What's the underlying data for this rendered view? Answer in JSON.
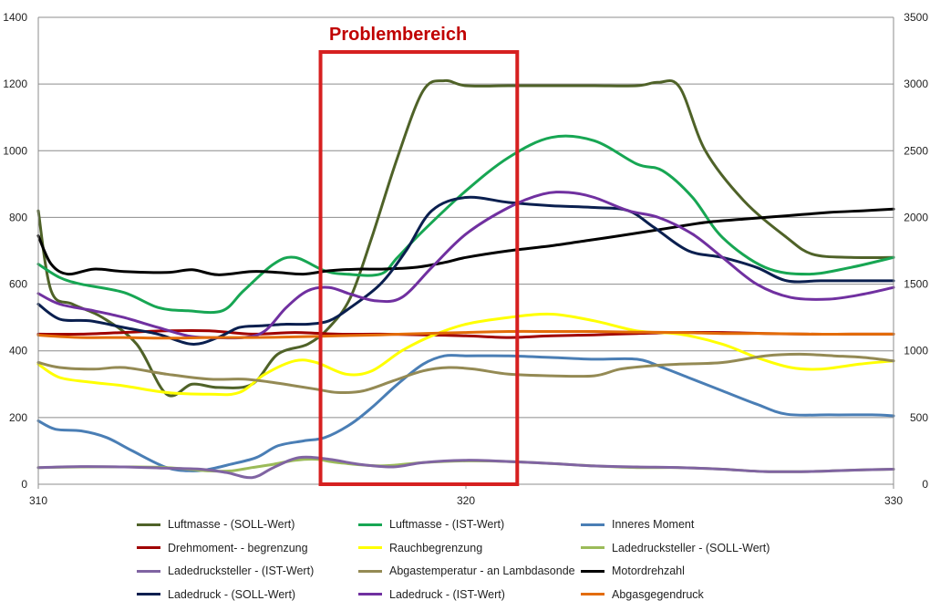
{
  "chart_data": {
    "type": "line",
    "title": "",
    "annotation": {
      "text": "Problembereich",
      "x_range": [
        316.6,
        321.2
      ],
      "color": "#d62020"
    },
    "xlim": [
      310,
      330
    ],
    "x_ticks": [
      "310",
      "320",
      "330"
    ],
    "ylim_left": [
      0,
      1400
    ],
    "y_ticks_left": [
      "0",
      "200",
      "400",
      "600",
      "800",
      "1000",
      "1200",
      "1400"
    ],
    "ylim_right": [
      0,
      3500
    ],
    "y_ticks_right": [
      "0",
      "500",
      "1000",
      "1500",
      "2000",
      "2500",
      "3000",
      "3500"
    ],
    "grid": true,
    "series": [
      {
        "name": "Luftmasse - (SOLL-Wert)",
        "color": "#4f6228",
        "axis": "left",
        "x": [
          310,
          310.3,
          310.8,
          311.5,
          312.3,
          313,
          313.6,
          314.2,
          315,
          315.6,
          316.3,
          316.8,
          317.3,
          317.8,
          318.4,
          319,
          319.5,
          320,
          321,
          322,
          323,
          324,
          324.5,
          325,
          325.6,
          326.5,
          327.5,
          328.1,
          329,
          330
        ],
        "y": [
          820,
          580,
          540,
          500,
          420,
          270,
          300,
          290,
          300,
          390,
          420,
          470,
          560,
          740,
          980,
          1180,
          1210,
          1195,
          1195,
          1195,
          1195,
          1195,
          1205,
          1190,
          1000,
          850,
          740,
          690,
          680,
          680
        ]
      },
      {
        "name": "Luftmasse - (IST-Wert)",
        "color": "#17a653",
        "axis": "left",
        "x": [
          310,
          310.5,
          311,
          312,
          312.8,
          313.5,
          314.3,
          314.8,
          315.5,
          316,
          316.7,
          317.2,
          318,
          318.4,
          319,
          320,
          321,
          322,
          323,
          324,
          324.6,
          325.3,
          326,
          327,
          328,
          329,
          330
        ],
        "y": [
          660,
          620,
          600,
          575,
          530,
          520,
          520,
          580,
          660,
          680,
          640,
          630,
          630,
          680,
          760,
          880,
          980,
          1040,
          1030,
          960,
          940,
          860,
          740,
          650,
          630,
          650,
          680
        ]
      },
      {
        "name": "Inneres Moment",
        "color": "#4a7eb5",
        "axis": "left",
        "x": [
          310,
          310.4,
          311,
          311.6,
          312.2,
          313,
          313.6,
          314,
          314.5,
          315.1,
          315.6,
          316.2,
          316.7,
          317.3,
          317.8,
          318.4,
          319,
          319.5,
          320,
          321,
          322,
          323,
          324,
          324.6,
          325.2,
          326,
          326.8,
          327.5,
          328.5,
          329.5,
          330
        ],
        "y": [
          190,
          165,
          160,
          140,
          100,
          50,
          40,
          45,
          60,
          80,
          115,
          130,
          140,
          180,
          230,
          300,
          360,
          385,
          385,
          385,
          380,
          375,
          375,
          350,
          320,
          280,
          240,
          210,
          208,
          208,
          205
        ]
      },
      {
        "name": "Drehmoment- - begrenzung",
        "color": "#a00000",
        "axis": "left",
        "x": [
          310,
          311,
          312,
          313,
          314,
          315,
          316,
          317,
          318,
          319,
          320,
          321,
          322,
          323,
          324,
          325,
          326,
          327,
          328,
          329,
          330
        ],
        "y": [
          450,
          450,
          455,
          460,
          460,
          450,
          455,
          450,
          450,
          448,
          445,
          440,
          445,
          448,
          452,
          455,
          455,
          452,
          450,
          450,
          450
        ]
      },
      {
        "name": "Rauchbegrenzung",
        "color": "#ffff00",
        "axis": "left",
        "x": [
          310,
          310.5,
          311.3,
          312,
          313,
          314,
          314.7,
          315.3,
          316,
          316.5,
          317.2,
          317.8,
          318.5,
          319.2,
          320,
          321,
          322,
          323,
          324,
          325,
          326,
          326.8,
          327.6,
          328.3,
          329.2,
          330
        ],
        "y": [
          360,
          320,
          305,
          295,
          275,
          270,
          275,
          330,
          370,
          365,
          330,
          340,
          400,
          445,
          480,
          500,
          510,
          490,
          460,
          450,
          420,
          380,
          350,
          345,
          360,
          370
        ]
      },
      {
        "name": "Ladedrucksteller - (SOLL-Wert)",
        "color": "#9bbb59",
        "axis": "left",
        "x": [
          310,
          311,
          312,
          313,
          314,
          314.5,
          315,
          315.5,
          316,
          316.5,
          317,
          318,
          319,
          320,
          321,
          322,
          323,
          324,
          325,
          326,
          327,
          328,
          329,
          330
        ],
        "y": [
          50,
          52,
          52,
          50,
          40,
          40,
          50,
          60,
          72,
          75,
          65,
          55,
          65,
          70,
          68,
          62,
          55,
          50,
          50,
          45,
          38,
          38,
          42,
          45
        ]
      },
      {
        "name": "Ladedrucksteller - (IST-Wert)",
        "color": "#8064a2",
        "axis": "left",
        "x": [
          310,
          311,
          312,
          313,
          313.8,
          314.4,
          315,
          315.5,
          316.1,
          316.8,
          317.5,
          318.3,
          319,
          320,
          321,
          322,
          323,
          324,
          325,
          326,
          327,
          328,
          329,
          330
        ],
        "y": [
          50,
          53,
          52,
          48,
          45,
          35,
          20,
          50,
          80,
          75,
          60,
          52,
          65,
          72,
          68,
          62,
          55,
          52,
          50,
          45,
          38,
          38,
          42,
          45
        ]
      },
      {
        "name": "Abgastemperatur - an Lambdasonde",
        "color": "#948a54",
        "axis": "left",
        "x": [
          310,
          310.5,
          311.3,
          312,
          313,
          314,
          314.8,
          315.5,
          316,
          316.5,
          317,
          317.6,
          318.3,
          319,
          319.6,
          320.2,
          321,
          322,
          323,
          323.6,
          324.3,
          325,
          326,
          327,
          327.8,
          328.6,
          329.3,
          330
        ],
        "y": [
          365,
          350,
          345,
          350,
          330,
          315,
          315,
          305,
          295,
          285,
          275,
          280,
          310,
          340,
          350,
          345,
          330,
          325,
          325,
          345,
          355,
          360,
          365,
          385,
          390,
          385,
          380,
          370
        ]
      },
      {
        "name": "Motordrehzahl",
        "color": "#000000",
        "axis": "left",
        "x": [
          310,
          310.3,
          310.7,
          311.3,
          312,
          313,
          313.6,
          314.2,
          315,
          315.6,
          316.2,
          316.8,
          317.5,
          318,
          318.8,
          319.5,
          320,
          321,
          322,
          322.8,
          323.6,
          324.6,
          325.6,
          326.5,
          327.5,
          328.5,
          329.3,
          330
        ],
        "y": [
          745,
          660,
          630,
          645,
          638,
          635,
          643,
          628,
          638,
          635,
          630,
          640,
          645,
          645,
          650,
          665,
          680,
          700,
          715,
          730,
          745,
          765,
          785,
          795,
          805,
          815,
          820,
          825
        ]
      },
      {
        "name": "Ladedruck - (SOLL-Wert)",
        "color": "#0a1f4f",
        "axis": "left",
        "x": [
          310,
          310.5,
          311.2,
          312,
          312.8,
          313.6,
          314.2,
          314.7,
          315.2,
          315.8,
          316.3,
          316.8,
          317.3,
          318,
          318.6,
          319.2,
          320,
          321,
          322,
          323,
          323.8,
          324.4,
          325.2,
          326,
          326.8,
          327.5,
          328.3,
          329.2,
          330
        ],
        "y": [
          540,
          495,
          490,
          470,
          450,
          420,
          440,
          470,
          475,
          480,
          480,
          490,
          530,
          600,
          700,
          820,
          860,
          845,
          835,
          830,
          820,
          770,
          700,
          680,
          650,
          610,
          610,
          610,
          610
        ]
      },
      {
        "name": "Ladedruck - (IST-Wert)",
        "color": "#7030a0",
        "axis": "left",
        "x": [
          310,
          310.5,
          311.3,
          312,
          312.8,
          313.5,
          314,
          314.8,
          315.3,
          315.8,
          316.3,
          316.8,
          317.3,
          317.9,
          318.5,
          319.2,
          320,
          321,
          321.8,
          322.4,
          323,
          323.8,
          324.5,
          325.3,
          326,
          326.8,
          327.6,
          328.5,
          329.3,
          330
        ],
        "y": [
          572,
          540,
          520,
          500,
          470,
          445,
          440,
          440,
          460,
          530,
          580,
          590,
          570,
          550,
          560,
          650,
          750,
          830,
          870,
          875,
          860,
          820,
          800,
          750,
          680,
          600,
          560,
          555,
          570,
          590
        ]
      },
      {
        "name": "Abgasgegendruck",
        "color": "#e36c09",
        "axis": "left",
        "x": [
          310,
          311,
          312,
          313,
          314,
          315,
          316,
          317,
          318,
          319,
          320,
          321,
          322,
          323,
          324,
          325,
          326,
          327,
          328,
          329,
          330
        ],
        "y": [
          447,
          440,
          440,
          438,
          440,
          440,
          442,
          445,
          448,
          452,
          455,
          458,
          458,
          458,
          456,
          455,
          452,
          452,
          450,
          450,
          450
        ]
      }
    ]
  },
  "legend": {
    "items": [
      {
        "label": "Luftmasse - (SOLL-Wert)",
        "color": "#4f6228"
      },
      {
        "label": "Luftmasse - (IST-Wert)",
        "color": "#17a653"
      },
      {
        "label": "Inneres Moment",
        "color": "#4a7eb5"
      },
      {
        "label": "Drehmoment- - begrenzung",
        "color": "#a00000"
      },
      {
        "label": "Rauchbegrenzung",
        "color": "#ffff00"
      },
      {
        "label": "Ladedrucksteller - (SOLL-Wert)",
        "color": "#9bbb59"
      },
      {
        "label": "Ladedrucksteller - (IST-Wert)",
        "color": "#8064a2"
      },
      {
        "label": "Abgastemperatur - an Lambdasonde",
        "color": "#948a54"
      },
      {
        "label": "Motordrehzahl",
        "color": "#000000"
      },
      {
        "label": "Ladedruck - (SOLL-Wert)",
        "color": "#0a1f4f"
      },
      {
        "label": "Ladedruck - (IST-Wert)",
        "color": "#7030a0"
      },
      {
        "label": "Abgasgegendruck",
        "color": "#e36c09"
      }
    ]
  }
}
